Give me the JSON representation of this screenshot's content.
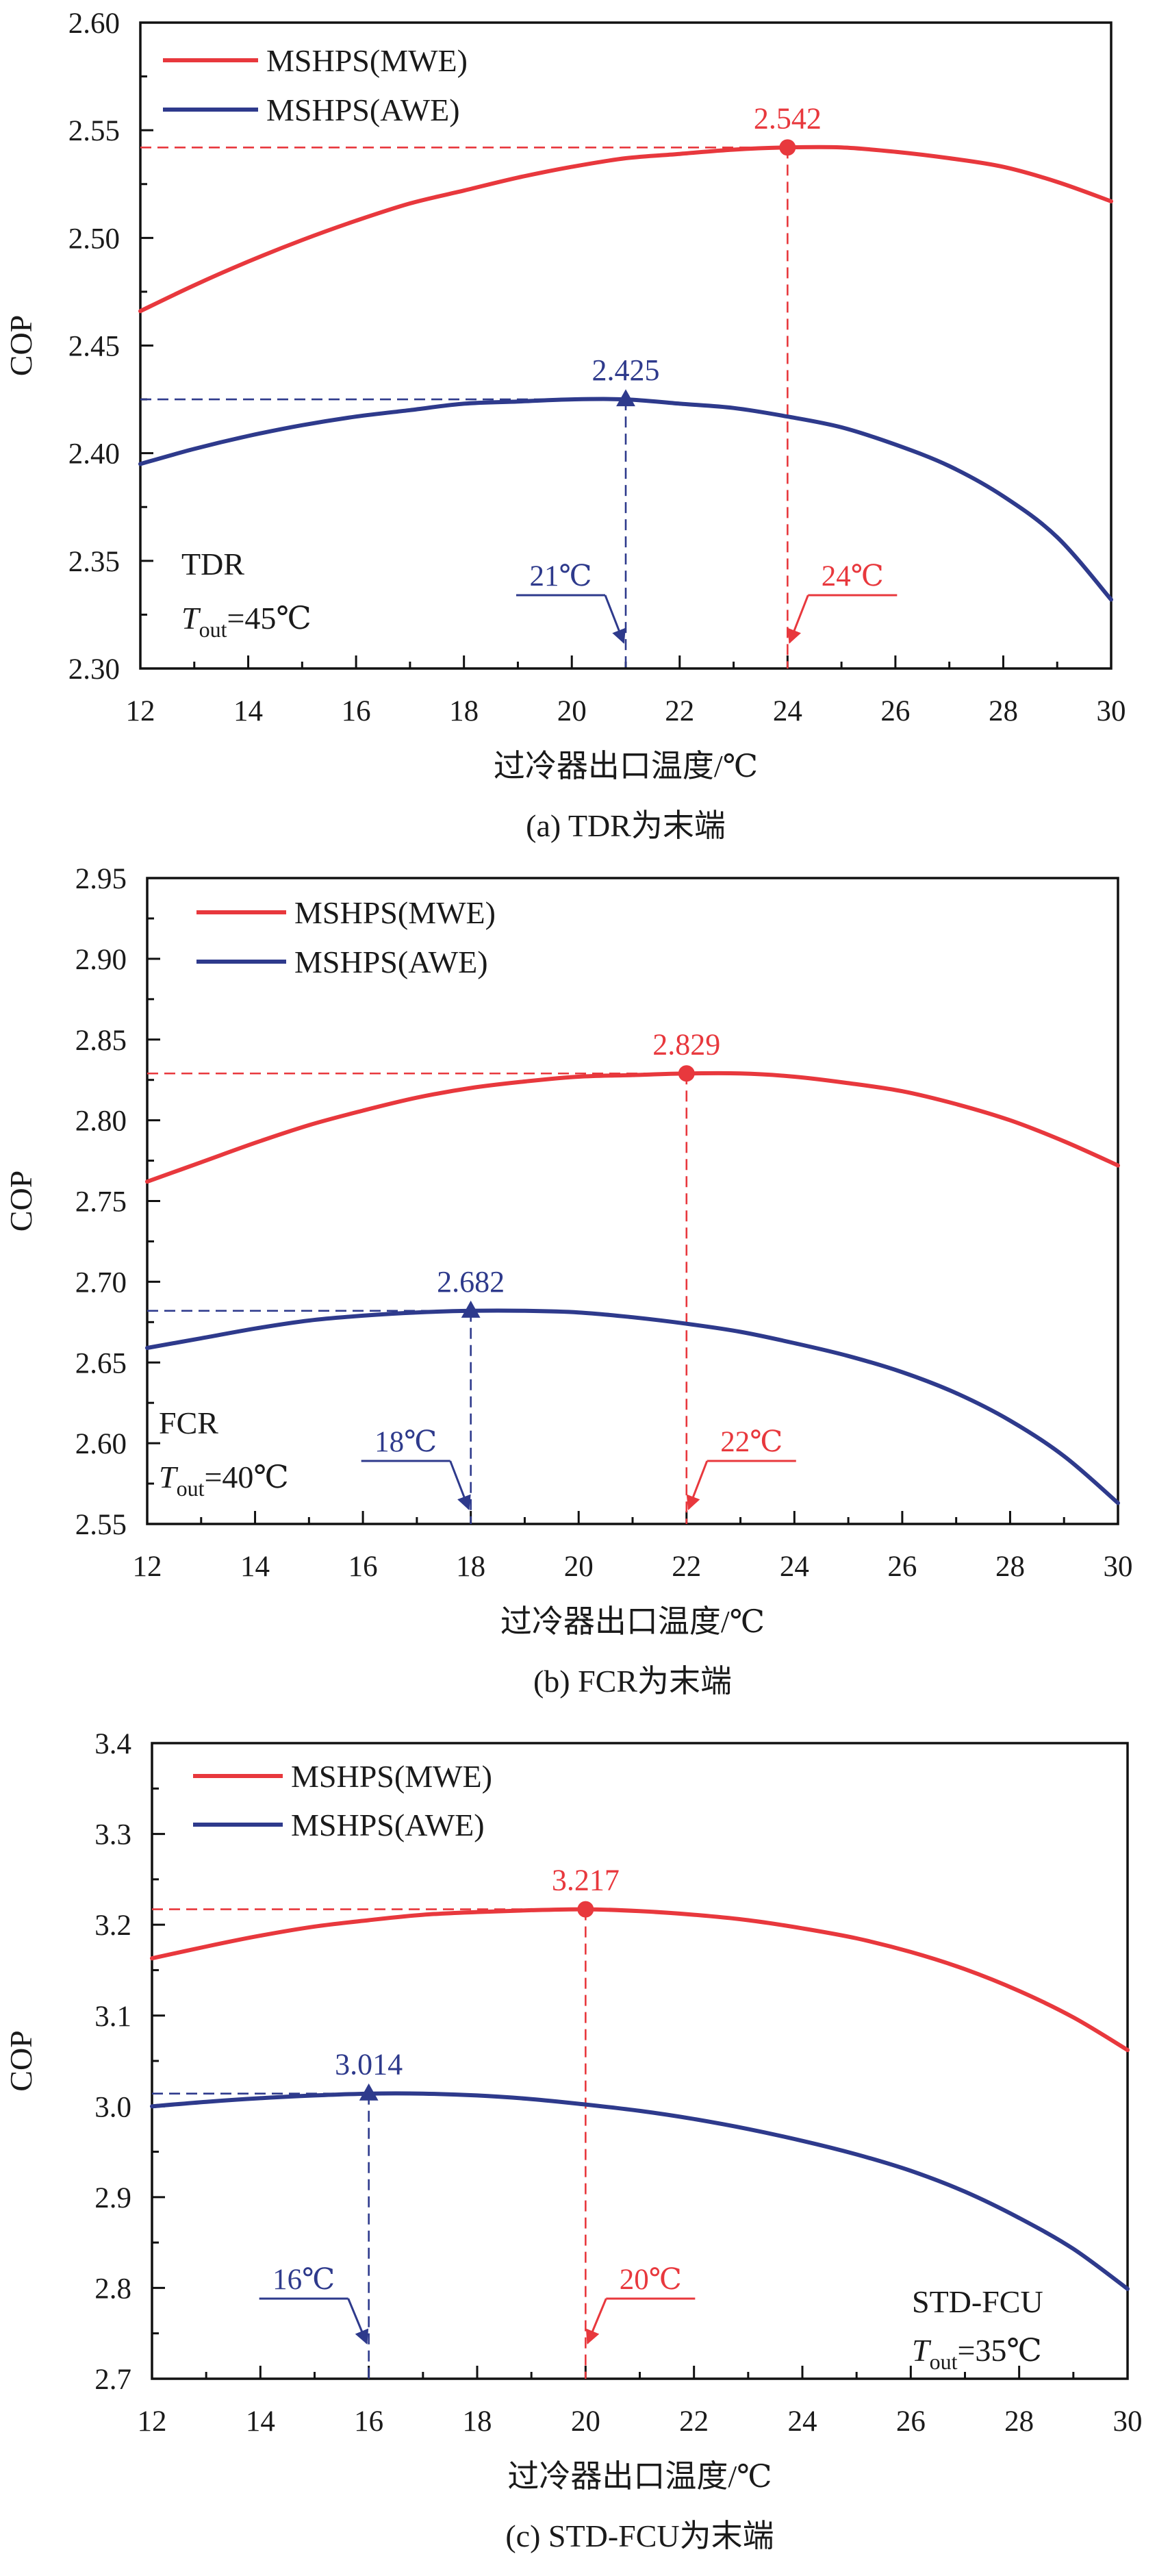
{
  "chart_data": [
    {
      "type": "line",
      "caption": "(a) TDR为末端",
      "xlabel": "过冷器出口温度/℃",
      "ylabel": "COP",
      "xlim": [
        12,
        30
      ],
      "ylim": [
        2.3,
        2.6
      ],
      "xticks": [
        "12",
        "14",
        "16",
        "18",
        "20",
        "22",
        "24",
        "26",
        "28",
        "30"
      ],
      "yticks": [
        "2.30",
        "2.35",
        "2.40",
        "2.45",
        "2.50",
        "2.55",
        "2.60"
      ],
      "x": [
        12,
        13,
        14,
        15,
        16,
        17,
        18,
        19,
        20,
        21,
        22,
        23,
        24,
        25,
        26,
        27,
        28,
        29,
        30
      ],
      "legend_position": "top-left",
      "series": [
        {
          "name": "MSHPS(MWE)",
          "color": "#e8383d",
          "values": [
            2.466,
            2.478,
            2.489,
            2.499,
            2.508,
            2.516,
            2.522,
            2.528,
            2.533,
            2.537,
            2.539,
            2.541,
            2.542,
            2.542,
            2.54,
            2.537,
            2.533,
            2.526,
            2.517
          ]
        },
        {
          "name": "MSHPS(AWE)",
          "color": "#2e3a8c",
          "values": [
            2.395,
            2.402,
            2.408,
            2.413,
            2.417,
            2.42,
            2.423,
            2.424,
            2.425,
            2.425,
            2.423,
            2.421,
            2.417,
            2.412,
            2.404,
            2.394,
            2.38,
            2.361,
            2.332
          ]
        }
      ],
      "annotations": [
        {
          "series": 0,
          "marker": "circle",
          "x": 24,
          "y": 2.542,
          "value_label": "2.542",
          "temp_label": "24℃",
          "callout_side": "right"
        },
        {
          "series": 1,
          "marker": "triangle",
          "x": 21,
          "y": 2.425,
          "value_label": "2.425",
          "temp_label": "21℃",
          "callout_side": "left"
        }
      ],
      "condition": {
        "label": "TDR",
        "tout_symbol": "T",
        "tout_subscript": "out",
        "tout_value": "=45℃",
        "placement": "bottom-left"
      }
    },
    {
      "type": "line",
      "caption": "(b) FCR为末端",
      "xlabel": "过冷器出口温度/℃",
      "ylabel": "COP",
      "xlim": [
        12,
        30
      ],
      "ylim": [
        2.55,
        2.95
      ],
      "xticks": [
        "12",
        "14",
        "16",
        "18",
        "20",
        "22",
        "24",
        "26",
        "28",
        "30"
      ],
      "yticks": [
        "2.55",
        "2.60",
        "2.65",
        "2.70",
        "2.75",
        "2.80",
        "2.85",
        "2.90",
        "2.95"
      ],
      "x": [
        12,
        13,
        14,
        15,
        16,
        17,
        18,
        19,
        20,
        21,
        22,
        23,
        24,
        25,
        26,
        27,
        28,
        29,
        30
      ],
      "legend_position": "top-left",
      "series": [
        {
          "name": "MSHPS(MWE)",
          "color": "#e8383d",
          "values": [
            2.762,
            2.774,
            2.786,
            2.797,
            2.806,
            2.814,
            2.82,
            2.824,
            2.827,
            2.828,
            2.829,
            2.829,
            2.827,
            2.823,
            2.818,
            2.81,
            2.8,
            2.787,
            2.772
          ]
        },
        {
          "name": "MSHPS(AWE)",
          "color": "#2e3a8c",
          "values": [
            2.659,
            2.665,
            2.671,
            2.676,
            2.679,
            2.681,
            2.682,
            2.682,
            2.681,
            2.678,
            2.674,
            2.669,
            2.662,
            2.654,
            2.644,
            2.631,
            2.614,
            2.592,
            2.563
          ]
        }
      ],
      "annotations": [
        {
          "series": 0,
          "marker": "circle",
          "x": 22,
          "y": 2.829,
          "value_label": "2.829",
          "temp_label": "22℃",
          "callout_side": "right"
        },
        {
          "series": 1,
          "marker": "triangle",
          "x": 18,
          "y": 2.682,
          "value_label": "2.682",
          "temp_label": "18℃",
          "callout_side": "left"
        }
      ],
      "condition": {
        "label": "FCR",
        "tout_symbol": "T",
        "tout_subscript": "out",
        "tout_value": "=40℃",
        "placement": "bottom-left"
      }
    },
    {
      "type": "line",
      "caption": "(c) STD-FCU为末端",
      "xlabel": "过冷器出口温度/℃",
      "ylabel": "COP",
      "xlim": [
        12,
        30
      ],
      "ylim": [
        2.7,
        3.4
      ],
      "xticks": [
        "12",
        "14",
        "16",
        "18",
        "20",
        "22",
        "24",
        "26",
        "28",
        "30"
      ],
      "yticks": [
        "2.7",
        "2.8",
        "2.9",
        "3.0",
        "3.1",
        "3.2",
        "3.3",
        "3.4"
      ],
      "x": [
        12,
        13,
        14,
        15,
        16,
        17,
        18,
        19,
        20,
        21,
        22,
        23,
        24,
        25,
        26,
        27,
        28,
        29,
        30
      ],
      "legend_position": "top-left",
      "series": [
        {
          "name": "MSHPS(MWE)",
          "color": "#e8383d",
          "values": [
            3.163,
            3.176,
            3.188,
            3.198,
            3.205,
            3.211,
            3.214,
            3.216,
            3.217,
            3.215,
            3.211,
            3.205,
            3.196,
            3.185,
            3.17,
            3.151,
            3.127,
            3.098,
            3.062
          ]
        },
        {
          "name": "MSHPS(AWE)",
          "color": "#2e3a8c",
          "values": [
            3.0,
            3.005,
            3.009,
            3.012,
            3.014,
            3.014,
            3.012,
            3.008,
            3.002,
            2.995,
            2.986,
            2.975,
            2.962,
            2.947,
            2.929,
            2.906,
            2.877,
            2.843,
            2.799
          ]
        }
      ],
      "annotations": [
        {
          "series": 0,
          "marker": "circle",
          "x": 20,
          "y": 3.217,
          "value_label": "3.217",
          "temp_label": "20℃",
          "callout_side": "right"
        },
        {
          "series": 1,
          "marker": "triangle",
          "x": 16,
          "y": 3.014,
          "value_label": "3.014",
          "temp_label": "16℃",
          "callout_side": "left"
        }
      ],
      "condition": {
        "label": "STD-FCU",
        "tout_symbol": "T",
        "tout_subscript": "out",
        "tout_value": "=35℃",
        "placement": "bottom-right"
      }
    }
  ]
}
